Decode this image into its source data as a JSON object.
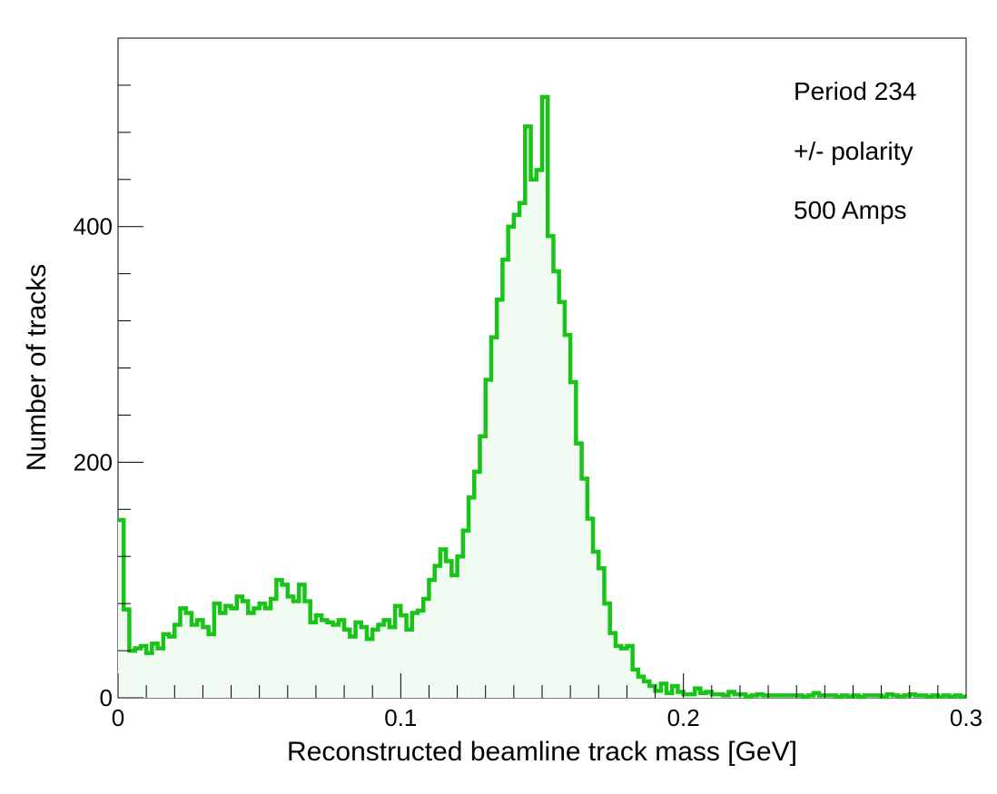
{
  "chart_data": {
    "type": "bar",
    "style": "histogram-step",
    "title": "",
    "xlabel": "Reconstructed beamline track mass [GeV]",
    "ylabel": "Number of tracks",
    "xlim": [
      0,
      0.3
    ],
    "ylim": [
      0,
      560
    ],
    "grid": false,
    "legend": "none",
    "bin_width": 0.002,
    "x_ticks": [
      {
        "value": 0,
        "label": "0"
      },
      {
        "value": 0.1,
        "label": "0.1"
      },
      {
        "value": 0.2,
        "label": "0.2"
      },
      {
        "value": 0.3,
        "label": "0.3"
      }
    ],
    "y_ticks": [
      {
        "value": 0,
        "label": "0"
      },
      {
        "value": 200,
        "label": "200"
      },
      {
        "value": 400,
        "label": "400"
      }
    ],
    "line_color": "#18c418",
    "fill_color": "#f2fbf2",
    "annotations": [
      "Period 234",
      "+/- polarity",
      "500 Amps"
    ],
    "series": [
      {
        "values": [
          151,
          75,
          40,
          42,
          44,
          38,
          46,
          42,
          54,
          52,
          62,
          76,
          72,
          62,
          66,
          60,
          54,
          80,
          72,
          78,
          76,
          86,
          82,
          72,
          76,
          80,
          76,
          84,
          100,
          96,
          86,
          82,
          96,
          82,
          64,
          70,
          66,
          64,
          62,
          66,
          58,
          52,
          64,
          60,
          50,
          58,
          62,
          66,
          60,
          78,
          70,
          58,
          72,
          74,
          84,
          100,
          112,
          126,
          116,
          104,
          120,
          142,
          170,
          192,
          222,
          270,
          306,
          338,
          372,
          400,
          410,
          420,
          485,
          440,
          448,
          510,
          392,
          362,
          336,
          308,
          268,
          216,
          186,
          152,
          124,
          110,
          80,
          55,
          44,
          42,
          44,
          24,
          18,
          14,
          10,
          6,
          12,
          4,
          10,
          5,
          3,
          3,
          8,
          4,
          5,
          3,
          3,
          2,
          5,
          3,
          3,
          1,
          2,
          3,
          2,
          2,
          2,
          2,
          2,
          2,
          2,
          1,
          2,
          4,
          2,
          2,
          2,
          1,
          2,
          1,
          2,
          1,
          2,
          2,
          2,
          1,
          3,
          2,
          1,
          2,
          3,
          2,
          2,
          1,
          2,
          1,
          2,
          1,
          2,
          1
        ]
      }
    ]
  }
}
